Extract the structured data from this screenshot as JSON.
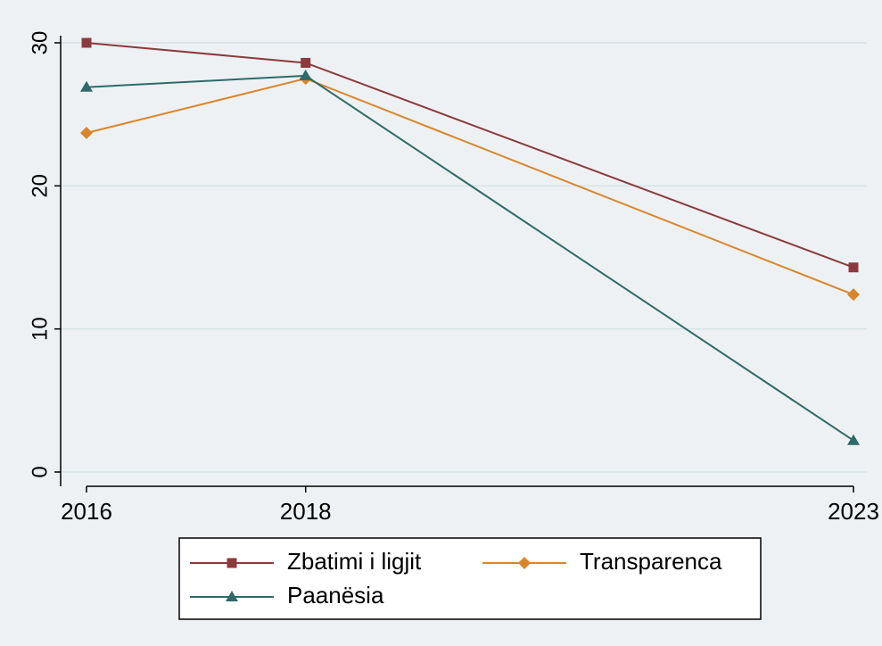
{
  "chart_data": {
    "type": "line",
    "x": [
      2016,
      2018,
      2023
    ],
    "series": [
      {
        "name": "Zbatimi i ligjit",
        "color": "#8b3a3e",
        "marker": "square",
        "values": [
          30,
          28.6,
          14.3
        ]
      },
      {
        "name": "Transparenca",
        "color": "#d9862b",
        "marker": "diamond",
        "values": [
          23.7,
          27.5,
          12.4
        ]
      },
      {
        "name": "Paanësia",
        "color": "#2d6b68",
        "marker": "triangle",
        "values": [
          26.9,
          27.7,
          2.2
        ]
      }
    ],
    "xlim": [
      2016,
      2023
    ],
    "xticks": [
      2016,
      2018,
      2023
    ],
    "ylim": [
      0,
      30
    ],
    "yticks": [
      0,
      10,
      20,
      30
    ],
    "grid": true,
    "legend": "bottom"
  }
}
